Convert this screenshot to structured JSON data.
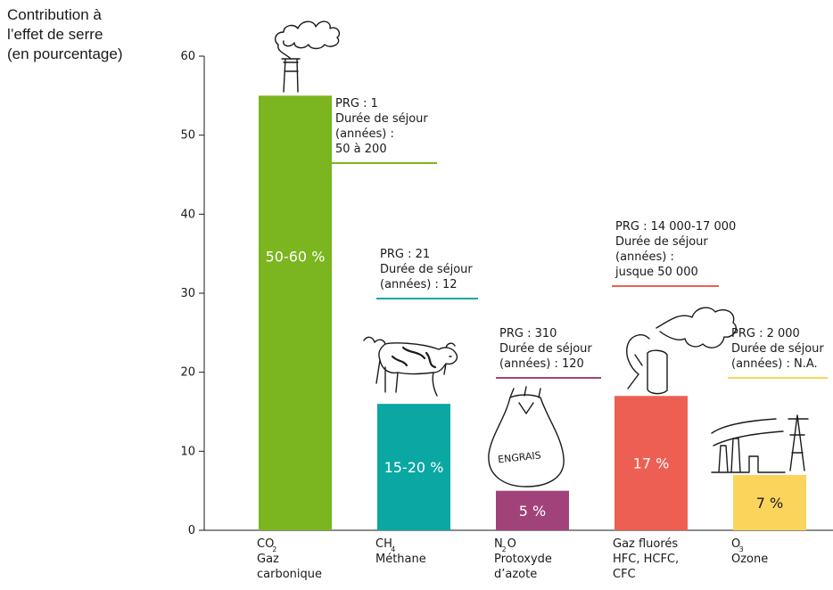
{
  "chart_data": {
    "type": "bar",
    "ylabel_lines": [
      "Contribution à",
      "l’effet de serre",
      "(en pourcentage)"
    ],
    "ylim": [
      0,
      60
    ],
    "yticks": [
      0,
      10,
      20,
      30,
      40,
      50,
      60
    ],
    "grid": false,
    "bars": [
      {
        "formula": "CO",
        "subscript": "2",
        "formula_suffix": "",
        "name_lines": [
          "Gaz",
          "carbonique"
        ],
        "value": 55,
        "label": "50-60 %",
        "color": "#7bb51f",
        "label_color": "#ffffff",
        "info_lines": [
          "PRG : 1",
          "Durée de séjour",
          "(années) :",
          "50 à 200"
        ],
        "info_color": "#7bb51f",
        "icon": "smokestack-icon"
      },
      {
        "formula": "CH",
        "subscript": "4",
        "formula_suffix": "",
        "name_lines": [
          "Méthane"
        ],
        "value": 16,
        "label": "15-20 %",
        "color": "#0aa7a3",
        "label_color": "#ffffff",
        "info_lines": [
          "PRG : 21",
          "Durée de séjour",
          "(années) : 12"
        ],
        "info_color": "#0aa7a3",
        "icon": "cow-icon"
      },
      {
        "formula": "N",
        "subscript": "2",
        "formula_suffix": "O",
        "name_lines": [
          "Protoxyde",
          "d’azote"
        ],
        "value": 5,
        "label": "5 %",
        "color": "#a2427a",
        "label_color": "#ffffff",
        "info_lines": [
          "PRG : 310",
          "Durée de séjour",
          "(années) : 120"
        ],
        "info_color": "#a2427a",
        "icon": "fertilizer-bag-icon",
        "icon_text": "ENGRAIS"
      },
      {
        "formula": "Gaz fluorés",
        "subscript": "",
        "formula_suffix": "",
        "name_lines": [
          "HFC, HCFC,",
          "CFC"
        ],
        "value": 17,
        "label": "17 %",
        "color": "#ec5f52",
        "label_color": "#ffffff",
        "info_lines": [
          "PRG : 14 000-17 000",
          "Durée de séjour",
          "(années) :",
          "jusque 50 000"
        ],
        "info_color": "#ec5f52",
        "icon": "spray-can-icon"
      },
      {
        "formula": "O",
        "subscript": "3",
        "formula_suffix": "",
        "name_lines": [
          "Ozone"
        ],
        "value": 7,
        "label": "7 %",
        "color": "#fbd45b",
        "label_color": "#1a1a1a",
        "info_lines": [
          "PRG : 2 000",
          "Durée de séjour",
          "(années) : N.A."
        ],
        "info_color": "#fbd45b",
        "icon": "power-plant-icon"
      }
    ]
  }
}
